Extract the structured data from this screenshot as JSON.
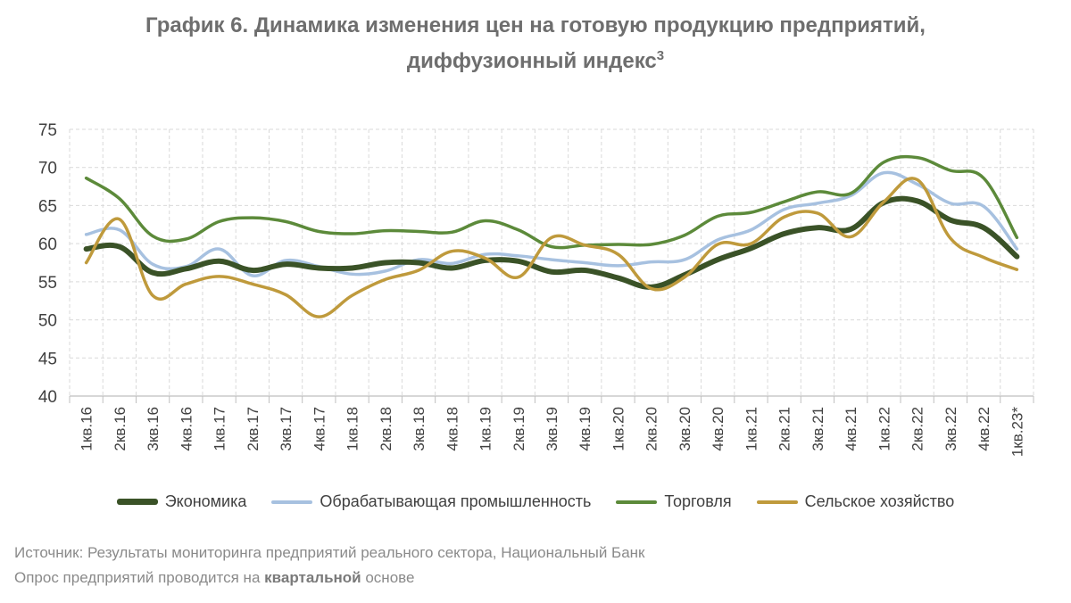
{
  "title": {
    "line1": "График 6. Динамика изменения цен на готовую продукцию предприятий,",
    "line2": "диффузионный индекс",
    "sup": "3"
  },
  "chart_data": {
    "type": "line",
    "categories": [
      "1кв.16",
      "2кв.16",
      "3кв.16",
      "4кв.16",
      "1кв.17",
      "2кв.17",
      "3кв.17",
      "4кв.17",
      "1кв.18",
      "2кв.18",
      "3кв.18",
      "4кв.18",
      "1кв.19",
      "2кв.19",
      "3кв.19",
      "4кв.19",
      "1кв.20",
      "2кв.20",
      "3кв.20",
      "4кв.20",
      "1кв.21",
      "2кв.21",
      "3кв.21",
      "4кв.21",
      "1кв.22",
      "2кв.22",
      "3кв.22",
      "4кв.22",
      "1кв.23*"
    ],
    "ylim": [
      40,
      75
    ],
    "yticks": [
      40,
      45,
      50,
      55,
      60,
      65,
      70,
      75
    ],
    "grid": true,
    "legend_position": "bottom",
    "series": [
      {
        "name": "Экономика",
        "color": "#3a5227",
        "width": 6,
        "values": [
          59.3,
          59.6,
          56.2,
          56.7,
          57.7,
          56.5,
          57.3,
          56.8,
          56.8,
          57.5,
          57.5,
          56.8,
          57.8,
          57.7,
          56.3,
          56.5,
          55.5,
          54.3,
          55.9,
          57.9,
          59.4,
          61.3,
          62.1,
          61.9,
          65.4,
          65.6,
          63.1,
          62.1,
          58.3
        ]
      },
      {
        "name": "Обрабатывающая промышленность",
        "color": "#a7c1e0",
        "width": 3.5,
        "values": [
          61.2,
          61.8,
          57.3,
          57.0,
          59.3,
          55.8,
          57.8,
          57.0,
          56.0,
          56.4,
          57.9,
          57.4,
          58.6,
          58.4,
          57.9,
          57.5,
          57.1,
          57.6,
          57.9,
          60.5,
          61.8,
          64.5,
          65.3,
          66.3,
          69.3,
          67.8,
          65.3,
          64.9,
          59.3
        ]
      },
      {
        "name": "Торговля",
        "color": "#5c8a3a",
        "width": 3.5,
        "values": [
          68.6,
          65.9,
          61.0,
          60.6,
          62.9,
          63.4,
          62.9,
          61.6,
          61.3,
          61.7,
          61.6,
          61.5,
          63.0,
          61.8,
          59.6,
          59.8,
          59.9,
          59.9,
          61.1,
          63.6,
          64.1,
          65.5,
          66.8,
          66.6,
          70.7,
          71.3,
          69.6,
          68.6,
          60.8
        ]
      },
      {
        "name": "Сельское хозяйство",
        "color": "#bf9a3c",
        "width": 3.5,
        "values": [
          57.5,
          63.2,
          53.2,
          54.7,
          55.7,
          54.7,
          53.3,
          50.4,
          53.2,
          55.3,
          56.5,
          59.0,
          58.1,
          55.6,
          60.8,
          59.8,
          58.6,
          54.1,
          55.6,
          59.9,
          60.0,
          63.5,
          64.0,
          60.9,
          65.5,
          68.4,
          60.7,
          58.2,
          56.6
        ]
      }
    ]
  },
  "footer": {
    "source": "Источник: Результаты мониторинга предприятий реального сектора, Национальный Банк",
    "note_pre": "Опрос предприятий проводится на ",
    "note_bold": "квартальной",
    "note_post": " основе"
  }
}
